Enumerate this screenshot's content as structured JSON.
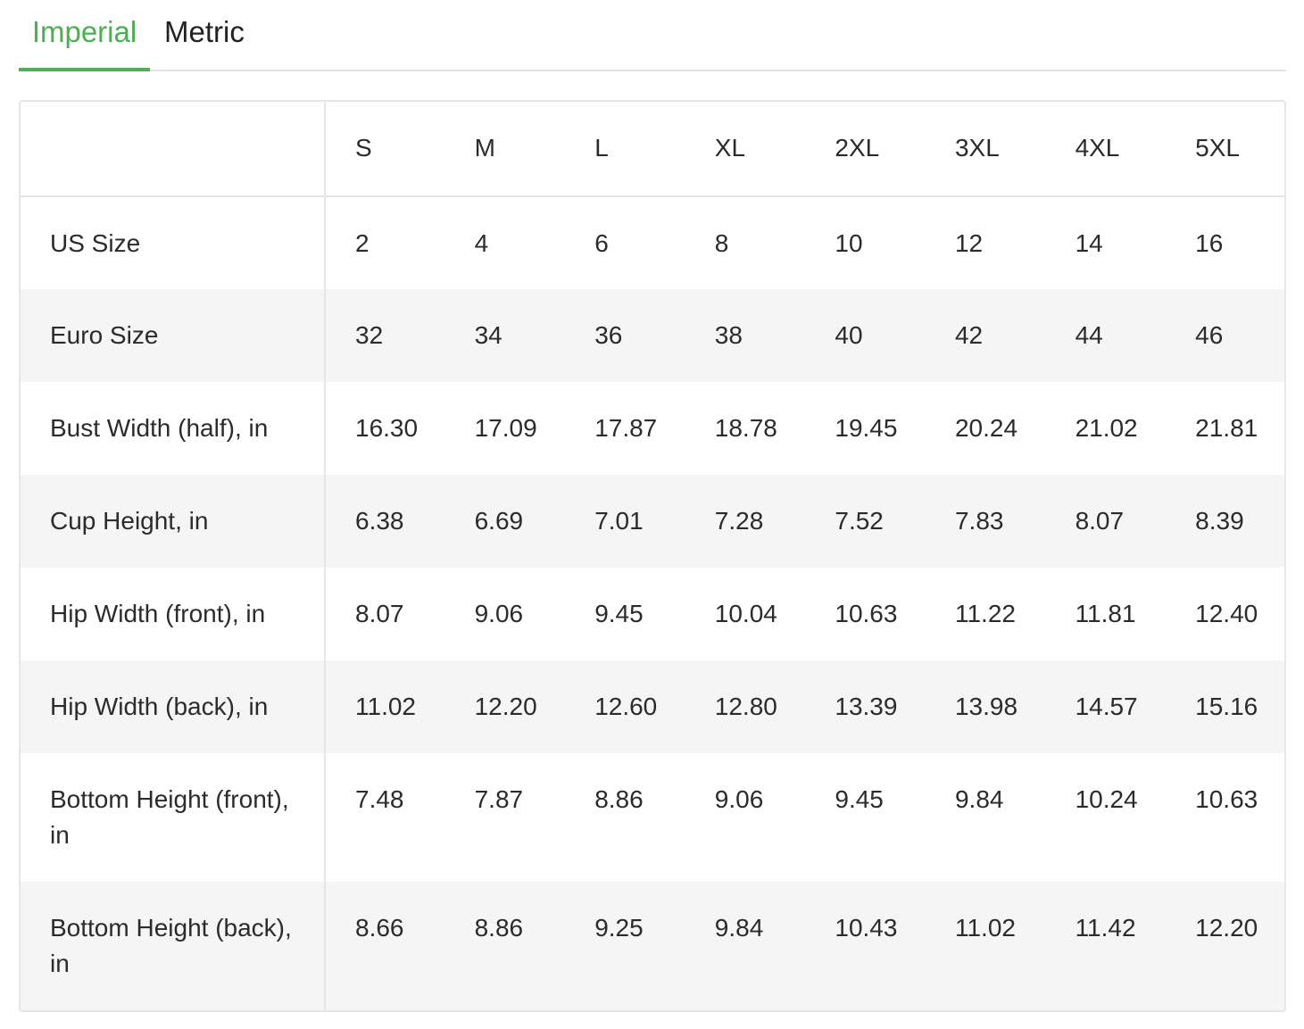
{
  "tabs": [
    {
      "label": "Imperial",
      "active": true
    },
    {
      "label": "Metric",
      "active": false
    }
  ],
  "colors": {
    "accent": "#4caf50",
    "border": "#e6e6e6",
    "stripe": "#f5f5f5",
    "text": "#2b2b2b"
  },
  "table": {
    "corner": "",
    "columns": [
      "S",
      "M",
      "L",
      "XL",
      "2XL",
      "3XL",
      "4XL",
      "5XL"
    ],
    "rows": [
      {
        "label": "US Size",
        "values": [
          "2",
          "4",
          "6",
          "8",
          "10",
          "12",
          "14",
          "16"
        ]
      },
      {
        "label": "Euro Size",
        "values": [
          "32",
          "34",
          "36",
          "38",
          "40",
          "42",
          "44",
          "46"
        ]
      },
      {
        "label": "Bust Width (half), in",
        "values": [
          "16.30",
          "17.09",
          "17.87",
          "18.78",
          "19.45",
          "20.24",
          "21.02",
          "21.81"
        ]
      },
      {
        "label": "Cup Height, in",
        "values": [
          "6.38",
          "6.69",
          "7.01",
          "7.28",
          "7.52",
          "7.83",
          "8.07",
          "8.39"
        ]
      },
      {
        "label": "Hip Width (front), in",
        "values": [
          "8.07",
          "9.06",
          "9.45",
          "10.04",
          "10.63",
          "11.22",
          "11.81",
          "12.40"
        ]
      },
      {
        "label": "Hip Width (back), in",
        "values": [
          "11.02",
          "12.20",
          "12.60",
          "12.80",
          "13.39",
          "13.98",
          "14.57",
          "15.16"
        ]
      },
      {
        "label": "Bottom Height (front), in",
        "values": [
          "7.48",
          "7.87",
          "8.86",
          "9.06",
          "9.45",
          "9.84",
          "10.24",
          "10.63"
        ]
      },
      {
        "label": "Bottom Height (back), in",
        "values": [
          "8.66",
          "8.86",
          "9.25",
          "9.84",
          "10.43",
          "11.02",
          "11.42",
          "12.20"
        ]
      }
    ]
  }
}
